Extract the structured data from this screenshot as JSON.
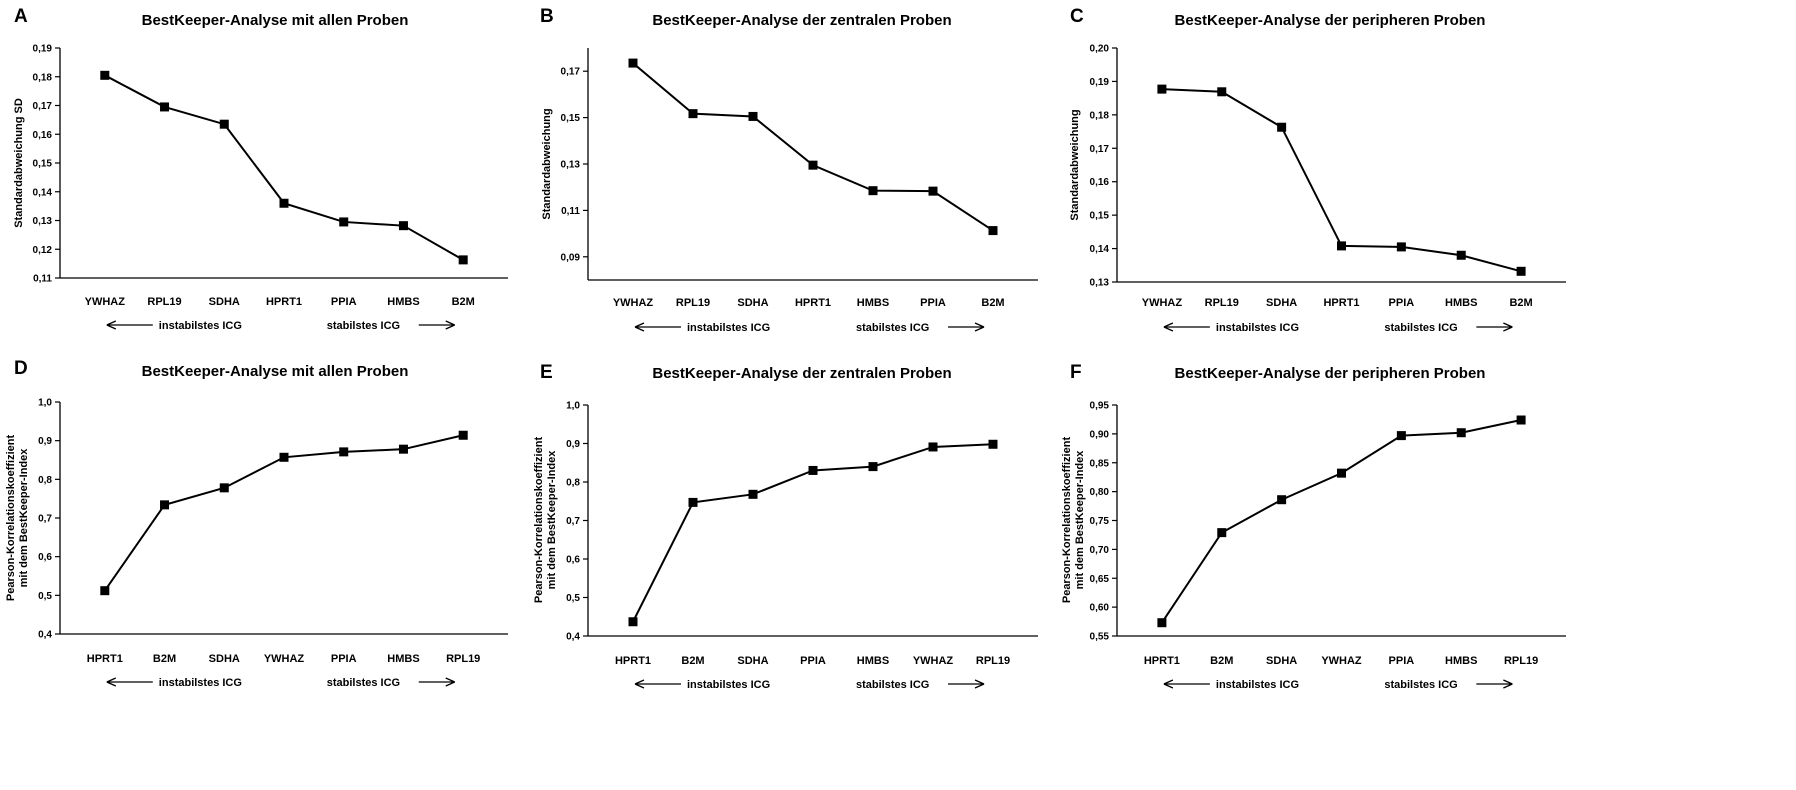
{
  "chart_data": [
    {
      "type": "line",
      "panel_letter": "A",
      "title": "BestKeeper-Analyse mit allen Proben",
      "xlabel": "",
      "ylabel": "Standardabweichung SD",
      "ylim": [
        0.11,
        0.19
      ],
      "yticks": [
        "0,11",
        "0,12",
        "0,13",
        "0,14",
        "0,15",
        "0,16",
        "0,17",
        "0,18",
        "0,19"
      ],
      "categories": [
        "YWHAZ",
        "RPL19",
        "SDHA",
        "HPRT1",
        "PPIA",
        "HMBS",
        "B2M"
      ],
      "values": [
        0.1805,
        0.1695,
        0.1635,
        0.136,
        0.1295,
        0.1282,
        0.1163
      ],
      "arrow_left_label": "instabilstes ICG",
      "arrow_right_label": "stabilstes ICG",
      "grid": false
    },
    {
      "type": "line",
      "panel_letter": "B",
      "title": "BestKeeper-Analyse der zentralen Proben",
      "xlabel": "",
      "ylabel": "Standardabweichung",
      "ylim": [
        0.08,
        0.18
      ],
      "yticks": [
        "0,09",
        "0,11",
        "0,13",
        "0,15",
        "0,17"
      ],
      "ytick_values": [
        0.09,
        0.11,
        0.13,
        0.15,
        0.17
      ],
      "categories": [
        "YWHAZ",
        "RPL19",
        "SDHA",
        "HPRT1",
        "HMBS",
        "PPIA",
        "B2M"
      ],
      "values": [
        0.1735,
        0.1517,
        0.1505,
        0.1295,
        0.1185,
        0.1183,
        0.1013
      ],
      "arrow_left_label": "instabilstes ICG",
      "arrow_right_label": "stabilstes ICG",
      "grid": false
    },
    {
      "type": "line",
      "panel_letter": "C",
      "title": "BestKeeper-Analyse der peripheren Proben",
      "xlabel": "",
      "ylabel": "Standardabweichung",
      "ylim": [
        0.13,
        0.2
      ],
      "yticks": [
        "0,13",
        "0,14",
        "0,15",
        "0,16",
        "0,17",
        "0,18",
        "0,19",
        "0,20"
      ],
      "categories": [
        "YWHAZ",
        "RPL19",
        "SDHA",
        "HPRT1",
        "PPIA",
        "HMBS",
        "B2M"
      ],
      "values": [
        0.1877,
        0.1869,
        0.1763,
        0.1408,
        0.1405,
        0.138,
        0.1332
      ],
      "arrow_left_label": "instabilstes ICG",
      "arrow_right_label": "stabilstes ICG",
      "grid": false
    },
    {
      "type": "line",
      "panel_letter": "D",
      "title": "BestKeeper-Analyse mit allen Proben",
      "xlabel": "",
      "ylabel": [
        "Pearson-Korrelationskoeffizient",
        "mit dem BestKeeper-Index"
      ],
      "ylim": [
        0.4,
        1.0
      ],
      "yticks": [
        "0,4",
        "0,5",
        "0,6",
        "0,7",
        "0,8",
        "0,9",
        "1,0"
      ],
      "categories": [
        "HPRT1",
        "B2M",
        "SDHA",
        "YWHAZ",
        "PPIA",
        "HMBS",
        "RPL19"
      ],
      "values": [
        0.512,
        0.734,
        0.778,
        0.857,
        0.871,
        0.878,
        0.914
      ],
      "arrow_left_label": "instabilstes ICG",
      "arrow_right_label": "stabilstes ICG",
      "grid": false
    },
    {
      "type": "line",
      "panel_letter": "E",
      "title": "BestKeeper-Analyse der zentralen Proben",
      "xlabel": "",
      "ylabel": [
        "Pearson-Korrelationskoeffizient",
        "mit dem BestKeeper-Index"
      ],
      "ylim": [
        0.4,
        1.0
      ],
      "yticks": [
        "0,4",
        "0,5",
        "0,6",
        "0,7",
        "0,8",
        "0,9",
        "1,0"
      ],
      "categories": [
        "HPRT1",
        "B2M",
        "SDHA",
        "PPIA",
        "HMBS",
        "YWHAZ",
        "RPL19"
      ],
      "values": [
        0.437,
        0.747,
        0.768,
        0.83,
        0.84,
        0.891,
        0.898
      ],
      "arrow_left_label": "instabilstes ICG",
      "arrow_right_label": "stabilstes ICG",
      "grid": false
    },
    {
      "type": "line",
      "panel_letter": "F",
      "title": "BestKeeper-Analyse der peripheren Proben",
      "xlabel": "",
      "ylabel": [
        "Pearson-Korrelationskoeffizient",
        "mit dem BestKeeper-Index"
      ],
      "ylim": [
        0.55,
        0.95
      ],
      "yticks": [
        "0,55",
        "0,60",
        "0,65",
        "0,70",
        "0,75",
        "0,80",
        "0,85",
        "0,90",
        "0,95"
      ],
      "categories": [
        "HPRT1",
        "B2M",
        "SDHA",
        "YWHAZ",
        "PPIA",
        "HMBS",
        "RPL19"
      ],
      "values": [
        0.573,
        0.729,
        0.786,
        0.832,
        0.897,
        0.902,
        0.924
      ],
      "arrow_left_label": "instabilstes ICG",
      "arrow_right_label": "stabilstes ICG",
      "grid": false
    }
  ]
}
